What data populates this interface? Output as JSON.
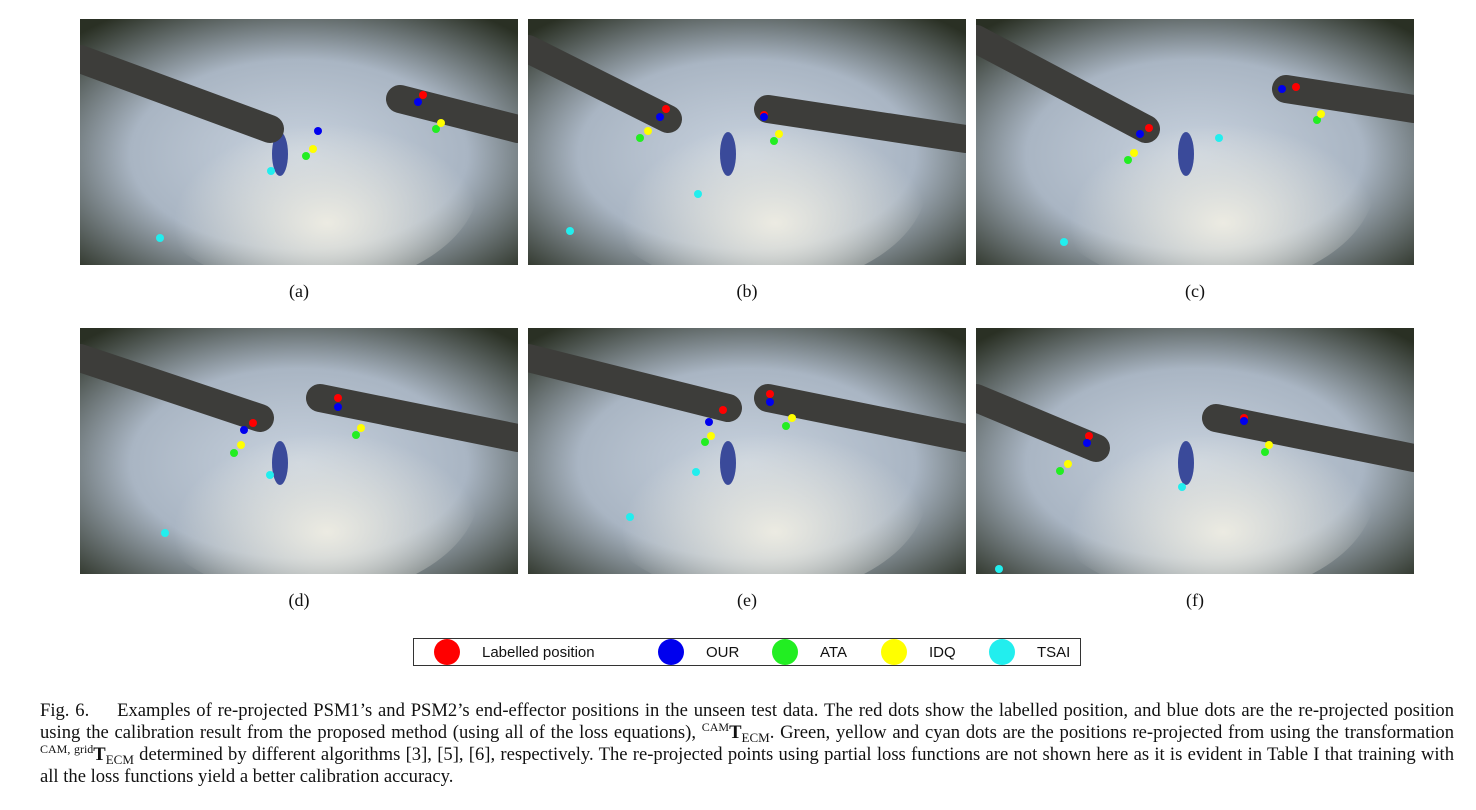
{
  "panels": [
    {
      "label": "(a)"
    },
    {
      "label": "(b)"
    },
    {
      "label": "(c)"
    },
    {
      "label": "(d)"
    },
    {
      "label": "(e)"
    },
    {
      "label": "(f)"
    }
  ],
  "legend": {
    "items": [
      {
        "label": "Labelled position",
        "color": "#ff0000"
      },
      {
        "label": "OUR",
        "color": "#0000ee"
      },
      {
        "label": "ATA",
        "color": "#22ee22"
      },
      {
        "label": "IDQ",
        "color": "#ffff00"
      },
      {
        "label": "TSAI",
        "color": "#22eeee"
      }
    ]
  },
  "caption": {
    "fig": "Fig. 6.",
    "part1": "Examples of re-projected PSM1’s and PSM2’s end-effector positions in the unseen test data. The red dots show the labelled position, and blue dots are the re-projected position using the calibration result from the proposed method (using all of the loss equations),",
    "sup1": "CAM",
    "sym1": "T",
    "sub1": "ECM",
    "part2": ". Green, yellow and cyan dots are the positions re-projected from using the transformation",
    "sup2": "CAM, grid",
    "sym2": "T",
    "sub2": "ECM",
    "part3": "determined by different algorithms [3], [5], [6], respectively. The re-projected points using partial loss functions are not shown here as it is evident in Table I that training with all the loss functions yield a better calibration accuracy."
  }
}
